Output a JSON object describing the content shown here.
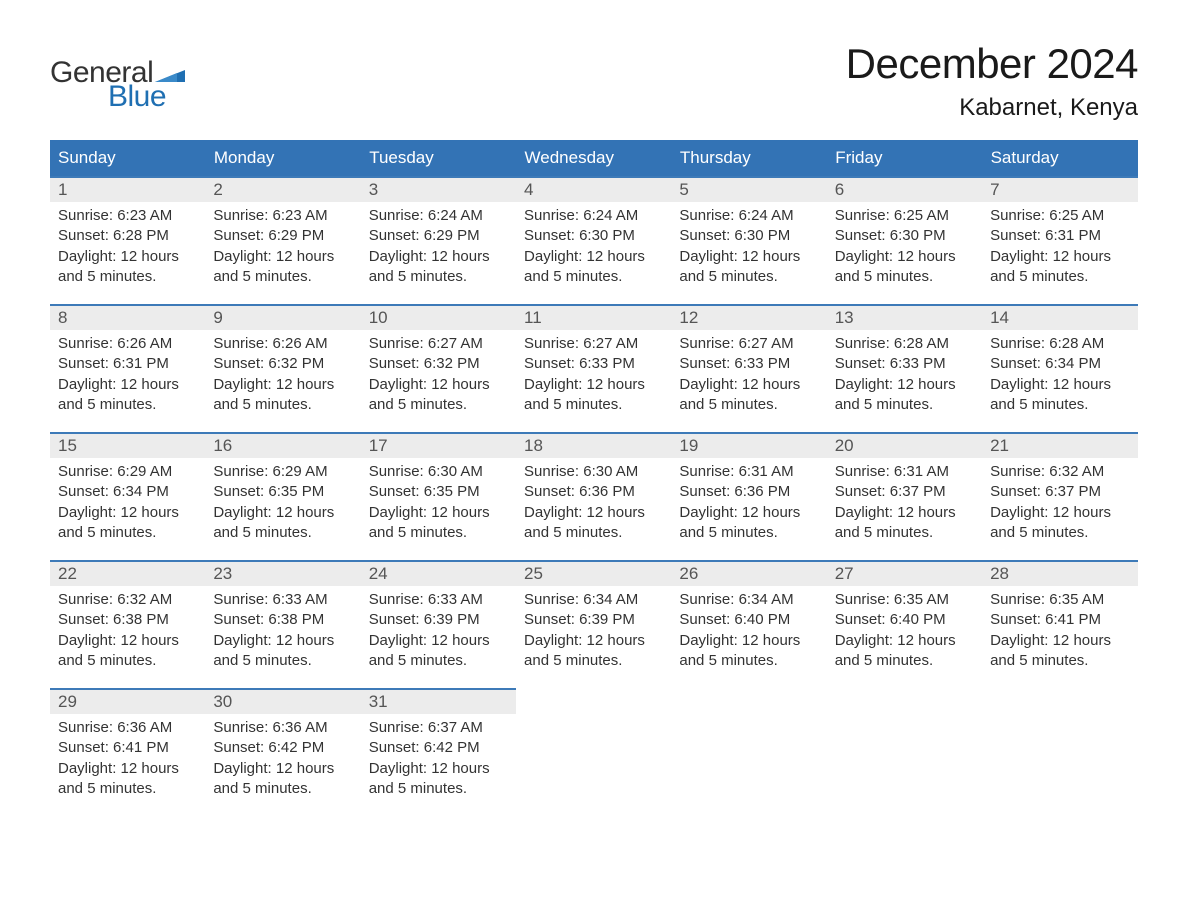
{
  "brand": {
    "word1": "General",
    "word2": "Blue",
    "accent_color": "#1f6fb2",
    "text_color": "#333333"
  },
  "title": {
    "month_year": "December 2024",
    "location": "Kabarnet, Kenya",
    "title_fontsize": 42,
    "location_fontsize": 24,
    "color": "#1a1a1a"
  },
  "calendar": {
    "header_bg": "#3373b5",
    "header_text_color": "#ffffff",
    "row_separator_color": "#3d7ab8",
    "daynum_bg": "#ececec",
    "daynum_color": "#555555",
    "cell_text_color": "#333333",
    "background_color": "#ffffff",
    "columns": [
      "Sunday",
      "Monday",
      "Tuesday",
      "Wednesday",
      "Thursday",
      "Friday",
      "Saturday"
    ],
    "weeks": [
      [
        {
          "day": "1",
          "sunrise": "Sunrise: 6:23 AM",
          "sunset": "Sunset: 6:28 PM",
          "daylight": "Daylight: 12 hours and 5 minutes."
        },
        {
          "day": "2",
          "sunrise": "Sunrise: 6:23 AM",
          "sunset": "Sunset: 6:29 PM",
          "daylight": "Daylight: 12 hours and 5 minutes."
        },
        {
          "day": "3",
          "sunrise": "Sunrise: 6:24 AM",
          "sunset": "Sunset: 6:29 PM",
          "daylight": "Daylight: 12 hours and 5 minutes."
        },
        {
          "day": "4",
          "sunrise": "Sunrise: 6:24 AM",
          "sunset": "Sunset: 6:30 PM",
          "daylight": "Daylight: 12 hours and 5 minutes."
        },
        {
          "day": "5",
          "sunrise": "Sunrise: 6:24 AM",
          "sunset": "Sunset: 6:30 PM",
          "daylight": "Daylight: 12 hours and 5 minutes."
        },
        {
          "day": "6",
          "sunrise": "Sunrise: 6:25 AM",
          "sunset": "Sunset: 6:30 PM",
          "daylight": "Daylight: 12 hours and 5 minutes."
        },
        {
          "day": "7",
          "sunrise": "Sunrise: 6:25 AM",
          "sunset": "Sunset: 6:31 PM",
          "daylight": "Daylight: 12 hours and 5 minutes."
        }
      ],
      [
        {
          "day": "8",
          "sunrise": "Sunrise: 6:26 AM",
          "sunset": "Sunset: 6:31 PM",
          "daylight": "Daylight: 12 hours and 5 minutes."
        },
        {
          "day": "9",
          "sunrise": "Sunrise: 6:26 AM",
          "sunset": "Sunset: 6:32 PM",
          "daylight": "Daylight: 12 hours and 5 minutes."
        },
        {
          "day": "10",
          "sunrise": "Sunrise: 6:27 AM",
          "sunset": "Sunset: 6:32 PM",
          "daylight": "Daylight: 12 hours and 5 minutes."
        },
        {
          "day": "11",
          "sunrise": "Sunrise: 6:27 AM",
          "sunset": "Sunset: 6:33 PM",
          "daylight": "Daylight: 12 hours and 5 minutes."
        },
        {
          "day": "12",
          "sunrise": "Sunrise: 6:27 AM",
          "sunset": "Sunset: 6:33 PM",
          "daylight": "Daylight: 12 hours and 5 minutes."
        },
        {
          "day": "13",
          "sunrise": "Sunrise: 6:28 AM",
          "sunset": "Sunset: 6:33 PM",
          "daylight": "Daylight: 12 hours and 5 minutes."
        },
        {
          "day": "14",
          "sunrise": "Sunrise: 6:28 AM",
          "sunset": "Sunset: 6:34 PM",
          "daylight": "Daylight: 12 hours and 5 minutes."
        }
      ],
      [
        {
          "day": "15",
          "sunrise": "Sunrise: 6:29 AM",
          "sunset": "Sunset: 6:34 PM",
          "daylight": "Daylight: 12 hours and 5 minutes."
        },
        {
          "day": "16",
          "sunrise": "Sunrise: 6:29 AM",
          "sunset": "Sunset: 6:35 PM",
          "daylight": "Daylight: 12 hours and 5 minutes."
        },
        {
          "day": "17",
          "sunrise": "Sunrise: 6:30 AM",
          "sunset": "Sunset: 6:35 PM",
          "daylight": "Daylight: 12 hours and 5 minutes."
        },
        {
          "day": "18",
          "sunrise": "Sunrise: 6:30 AM",
          "sunset": "Sunset: 6:36 PM",
          "daylight": "Daylight: 12 hours and 5 minutes."
        },
        {
          "day": "19",
          "sunrise": "Sunrise: 6:31 AM",
          "sunset": "Sunset: 6:36 PM",
          "daylight": "Daylight: 12 hours and 5 minutes."
        },
        {
          "day": "20",
          "sunrise": "Sunrise: 6:31 AM",
          "sunset": "Sunset: 6:37 PM",
          "daylight": "Daylight: 12 hours and 5 minutes."
        },
        {
          "day": "21",
          "sunrise": "Sunrise: 6:32 AM",
          "sunset": "Sunset: 6:37 PM",
          "daylight": "Daylight: 12 hours and 5 minutes."
        }
      ],
      [
        {
          "day": "22",
          "sunrise": "Sunrise: 6:32 AM",
          "sunset": "Sunset: 6:38 PM",
          "daylight": "Daylight: 12 hours and 5 minutes."
        },
        {
          "day": "23",
          "sunrise": "Sunrise: 6:33 AM",
          "sunset": "Sunset: 6:38 PM",
          "daylight": "Daylight: 12 hours and 5 minutes."
        },
        {
          "day": "24",
          "sunrise": "Sunrise: 6:33 AM",
          "sunset": "Sunset: 6:39 PM",
          "daylight": "Daylight: 12 hours and 5 minutes."
        },
        {
          "day": "25",
          "sunrise": "Sunrise: 6:34 AM",
          "sunset": "Sunset: 6:39 PM",
          "daylight": "Daylight: 12 hours and 5 minutes."
        },
        {
          "day": "26",
          "sunrise": "Sunrise: 6:34 AM",
          "sunset": "Sunset: 6:40 PM",
          "daylight": "Daylight: 12 hours and 5 minutes."
        },
        {
          "day": "27",
          "sunrise": "Sunrise: 6:35 AM",
          "sunset": "Sunset: 6:40 PM",
          "daylight": "Daylight: 12 hours and 5 minutes."
        },
        {
          "day": "28",
          "sunrise": "Sunrise: 6:35 AM",
          "sunset": "Sunset: 6:41 PM",
          "daylight": "Daylight: 12 hours and 5 minutes."
        }
      ],
      [
        {
          "day": "29",
          "sunrise": "Sunrise: 6:36 AM",
          "sunset": "Sunset: 6:41 PM",
          "daylight": "Daylight: 12 hours and 5 minutes."
        },
        {
          "day": "30",
          "sunrise": "Sunrise: 6:36 AM",
          "sunset": "Sunset: 6:42 PM",
          "daylight": "Daylight: 12 hours and 5 minutes."
        },
        {
          "day": "31",
          "sunrise": "Sunrise: 6:37 AM",
          "sunset": "Sunset: 6:42 PM",
          "daylight": "Daylight: 12 hours and 5 minutes."
        },
        {
          "empty": true
        },
        {
          "empty": true
        },
        {
          "empty": true
        },
        {
          "empty": true
        }
      ]
    ]
  }
}
